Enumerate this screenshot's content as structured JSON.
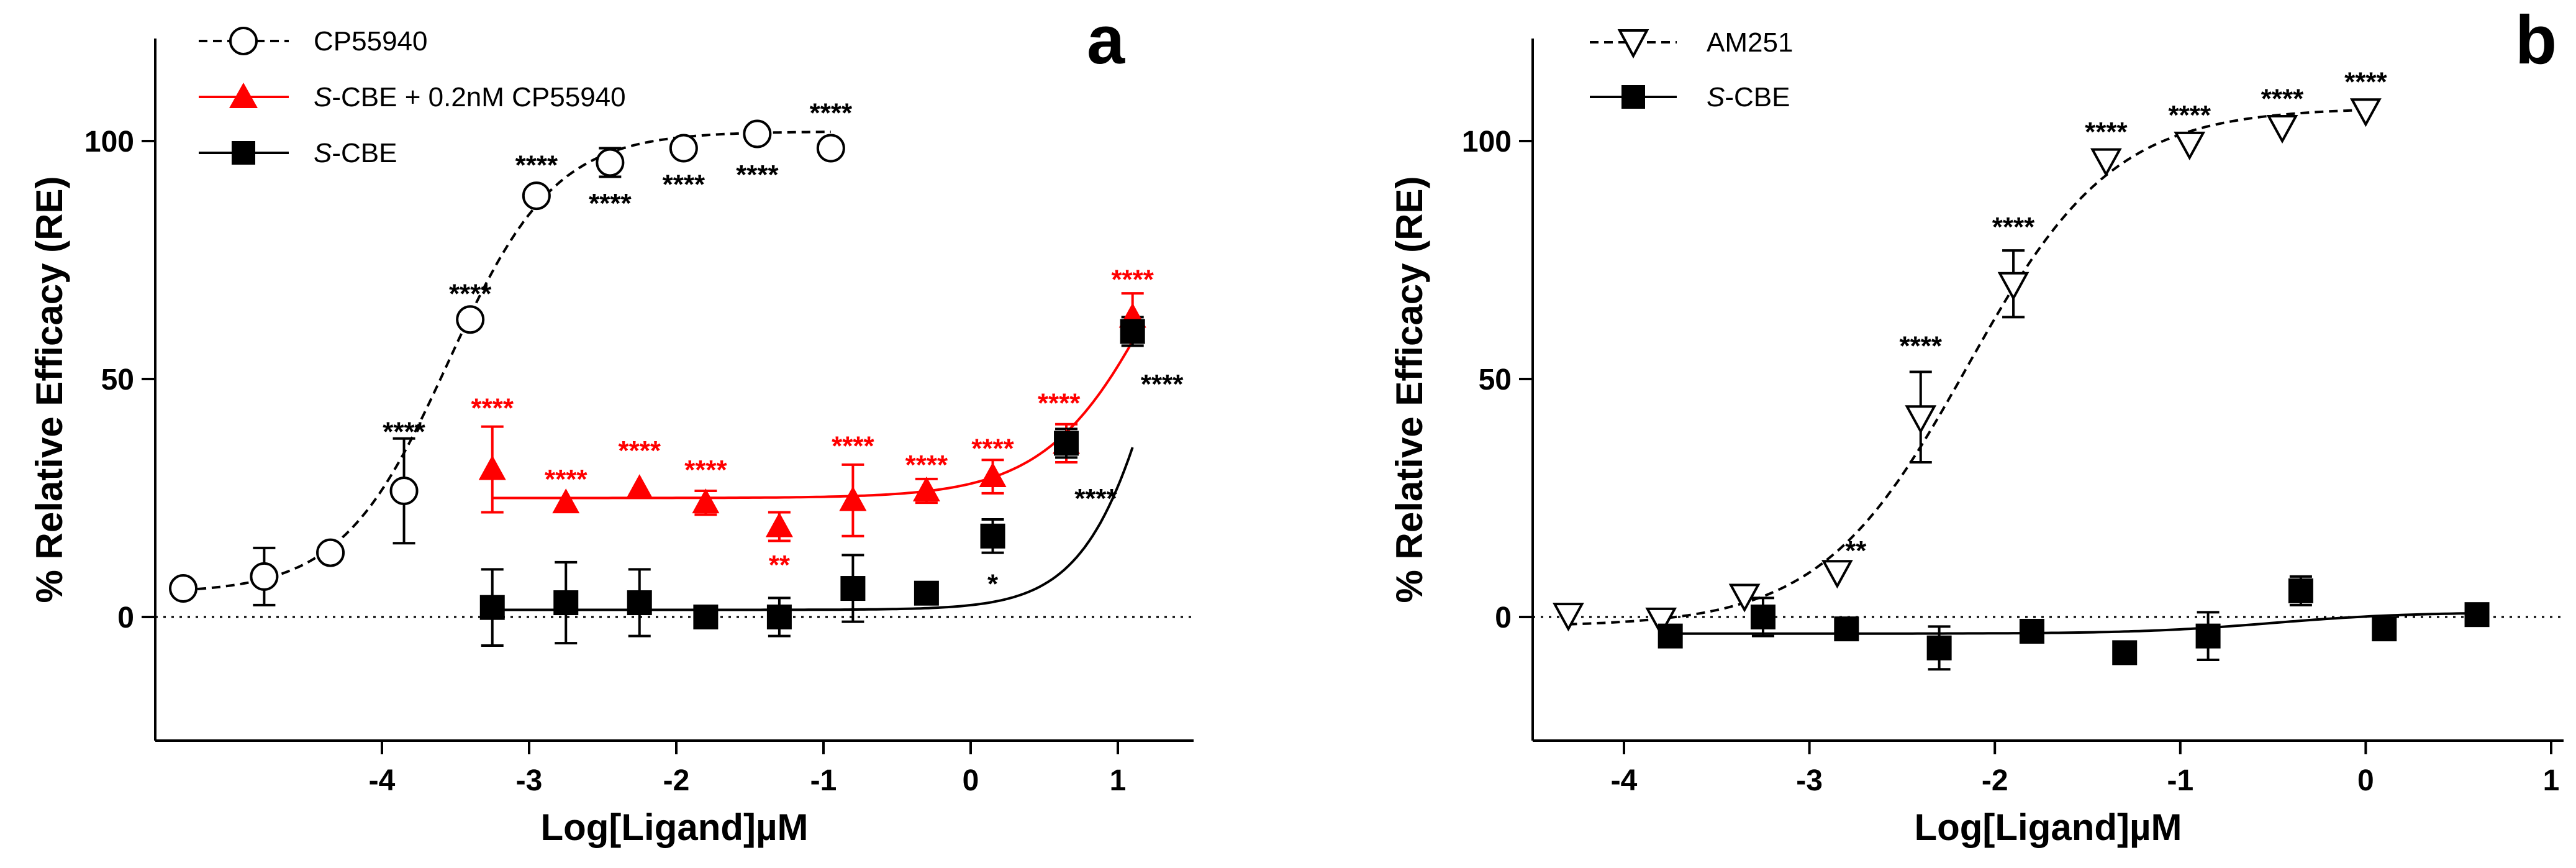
{
  "chart_data": [
    {
      "type": "scatter",
      "panel_label": "a",
      "xlabel": "Log[Ligand]µM",
      "ylabel": "% Relative Efficacy (RE)",
      "xlim": [
        -5.5,
        1.5
      ],
      "ylim": [
        -25,
        120
      ],
      "xticks": [
        -4,
        -3,
        -2,
        -1,
        0,
        1
      ],
      "xtick_labels": [
        "-4",
        "-3",
        "-2",
        "-1",
        "0",
        "1"
      ],
      "yticks": [
        0,
        50,
        100
      ],
      "ytick_labels": [
        "0",
        "50",
        "100"
      ],
      "legend_position": "top-left",
      "reference_line": {
        "y": 0,
        "style": "dotted"
      },
      "series": [
        {
          "name": "CP55940",
          "marker": "open-circle",
          "color": "#000000",
          "line_style": "dashed",
          "x": [
            -5.35,
            -4.8,
            -4.35,
            -3.85,
            -3.4,
            -2.95,
            -2.45,
            -1.95,
            -1.45,
            -0.95
          ],
          "y": [
            6,
            8.5,
            13.5,
            26.5,
            62.5,
            88.5,
            95.5,
            98.5,
            101.5,
            98.5
          ],
          "err": [
            0,
            6,
            0,
            11,
            0,
            0,
            3,
            0,
            0,
            0
          ],
          "fit": {
            "bottom": 5,
            "top": 102,
            "logEC50": -3.55,
            "hill": 1.2,
            "x_range": [
              -5.35,
              -0.95
            ]
          },
          "annotations": [
            {
              "label": "****",
              "x": -3.85,
              "y": 37
            },
            {
              "label": "****",
              "x": -3.4,
              "y": 66
            },
            {
              "label": "****",
              "x": -2.95,
              "y": 93
            },
            {
              "label": "****",
              "x": -2.45,
              "y": 85
            },
            {
              "label": "****",
              "x": -1.95,
              "y": 89
            },
            {
              "label": "****",
              "x": -1.45,
              "y": 91
            },
            {
              "label": "****",
              "x": -0.95,
              "y": 104
            }
          ]
        },
        {
          "name": "S-CBE + 0.2nM CP55940",
          "name_italic": "S",
          "name_rest": "-CBE + 0.2nM CP55940",
          "marker": "filled-triangle",
          "color": "#ff0000",
          "line_style": "solid",
          "x": [
            -3.25,
            -2.75,
            -2.25,
            -1.8,
            -1.3,
            -0.8,
            -0.3,
            0.15,
            0.65,
            1.1
          ],
          "y": [
            31,
            24,
            27,
            24,
            19,
            24.5,
            26.5,
            29.5,
            36.5,
            63
          ],
          "err": [
            9,
            0,
            0,
            2.5,
            3,
            7.5,
            2.5,
            3.5,
            4,
            5
          ],
          "fit": {
            "bottom": 25,
            "top": 120,
            "logEC50": 1.35,
            "hill": 1.1,
            "x_range": [
              -3.25,
              1.1
            ]
          },
          "annotations": [
            {
              "label": "****",
              "x": -3.25,
              "y": 42
            },
            {
              "label": "****",
              "x": -2.75,
              "y": 27
            },
            {
              "label": "****",
              "x": -2.25,
              "y": 33
            },
            {
              "label": "****",
              "x": -1.8,
              "y": 29
            },
            {
              "label": "**",
              "x": -1.3,
              "y": 9
            },
            {
              "label": "****",
              "x": -0.8,
              "y": 34
            },
            {
              "label": "****",
              "x": -0.3,
              "y": 30
            },
            {
              "label": "****",
              "x": 0.15,
              "y": 33.5
            },
            {
              "label": "****",
              "x": 0.6,
              "y": 43
            },
            {
              "label": "****",
              "x": 1.1,
              "y": 69
            }
          ]
        },
        {
          "name": "S-CBE",
          "name_italic": "S",
          "name_rest": "-CBE",
          "marker": "filled-square",
          "color": "#000000",
          "line_style": "solid",
          "x": [
            -3.25,
            -2.75,
            -2.25,
            -1.8,
            -1.3,
            -0.8,
            -0.3,
            0.15,
            0.65,
            1.1
          ],
          "y": [
            2,
            3,
            3,
            0,
            0,
            6,
            5,
            17,
            36.5,
            60
          ],
          "err": [
            8,
            8.5,
            7,
            0,
            4,
            7,
            0,
            3.5,
            3,
            3
          ],
          "fit": {
            "bottom": 1.5,
            "top": 150,
            "logEC50": 1.45,
            "hill": 1.5,
            "x_range": [
              -3.25,
              1.1
            ]
          },
          "annotations": [
            {
              "label": "*",
              "x": 0.15,
              "y": 5
            },
            {
              "label": "****",
              "x": 0.85,
              "y": 23
            },
            {
              "label": "****",
              "x": 1.3,
              "y": 47
            }
          ]
        }
      ]
    },
    {
      "type": "scatter",
      "panel_label": "b",
      "xlabel": "Log[Ligand]µM",
      "ylabel": "% Relative Efficacy (RE)",
      "xlim": [
        -4.5,
        1
      ],
      "ylim": [
        -25,
        120
      ],
      "xticks": [
        -4,
        -3,
        -2,
        -1,
        0,
        1
      ],
      "xtick_labels": [
        "-4",
        "-3",
        "-2",
        "-1",
        "0",
        "1"
      ],
      "yticks": [
        0,
        50,
        100
      ],
      "ytick_labels": [
        "0",
        "50",
        "100"
      ],
      "legend_position": "top-left",
      "reference_line": {
        "y": 0,
        "style": "dotted"
      },
      "series": [
        {
          "name": "AM251",
          "marker": "open-down-triangle",
          "color": "#000000",
          "line_style": "dashed",
          "x": [
            -4.3,
            -3.8,
            -3.35,
            -2.85,
            -2.4,
            -1.9,
            -1.4,
            -0.95,
            -0.45,
            0
          ],
          "y": [
            0.5,
            -0.5,
            4.5,
            9.5,
            42,
            70,
            96,
            99.5,
            103,
            106.5
          ],
          "err": [
            0,
            0,
            0,
            0,
            9.5,
            7,
            0,
            0,
            0,
            0
          ],
          "fit": {
            "bottom": -2,
            "top": 107,
            "logEC50": -2.15,
            "hill": 1.1,
            "x_range": [
              -4.3,
              0
            ]
          },
          "annotations": [
            {
              "label": "**",
              "x": -2.75,
              "y": 12
            },
            {
              "label": "****",
              "x": -2.4,
              "y": 55
            },
            {
              "label": "****",
              "x": -1.9,
              "y": 80
            },
            {
              "label": "****",
              "x": -1.4,
              "y": 100
            },
            {
              "label": "****",
              "x": -0.95,
              "y": 103.5
            },
            {
              "label": "****",
              "x": -0.45,
              "y": 107
            },
            {
              "label": "****",
              "x": 0,
              "y": 110.5
            }
          ]
        },
        {
          "name": "S-CBE",
          "name_italic": "S",
          "name_rest": "-CBE",
          "marker": "filled-square",
          "color": "#000000",
          "line_style": "solid",
          "x": [
            -3.75,
            -3.25,
            -2.8,
            -2.3,
            -1.8,
            -1.3,
            -0.85,
            -0.35,
            0.1,
            0.6
          ],
          "y": [
            -4,
            0,
            -2.5,
            -6.5,
            -3,
            -7.5,
            -4,
            5.5,
            -2.5,
            0.5
          ],
          "err": [
            0,
            4,
            0,
            4.5,
            0,
            0,
            5,
            3,
            0,
            0
          ],
          "fit": {
            "bottom": -3.5,
            "top": 1,
            "logEC50": -0.5,
            "hill": 1.2,
            "x_range": [
              -3.75,
              0.6
            ]
          },
          "annotations": []
        }
      ]
    }
  ],
  "colors": {
    "black": "#000000",
    "red": "#ff0000",
    "background": "#ffffff"
  }
}
